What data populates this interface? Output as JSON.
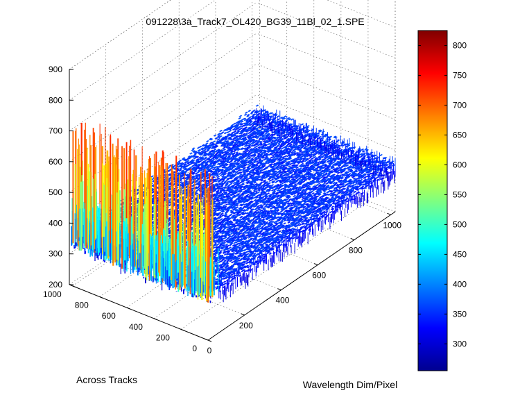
{
  "chart_data": {
    "type": "surface",
    "title": "091228\\3a_Track7_OL420_BG39_11Bl_02_1.SPE",
    "xlabel": "Wavelength Dim/Pixel",
    "ylabel": "Across Tracks",
    "zlabel": "",
    "xlim": [
      0,
      1024
    ],
    "ylim": [
      0,
      1024
    ],
    "zlim": [
      200,
      900
    ],
    "x_ticks": [
      0,
      200,
      400,
      600,
      800,
      1000
    ],
    "y_ticks": [
      0,
      200,
      400,
      600,
      800,
      1000
    ],
    "z_ticks": [
      200,
      300,
      400,
      500,
      600,
      700,
      800,
      900
    ],
    "grid": true,
    "colormap": "jet",
    "colorbar": {
      "placement": "right",
      "range": [
        255,
        825
      ],
      "ticks": [
        300,
        350,
        400,
        450,
        500,
        550,
        600,
        650,
        700,
        750,
        800
      ]
    },
    "surface_summary": {
      "baseline_intensity": 350,
      "baseline_noise": 20,
      "edge_region_x": [
        0,
        60
      ],
      "edge_region_intensity_range": [
        260,
        730
      ]
    }
  }
}
